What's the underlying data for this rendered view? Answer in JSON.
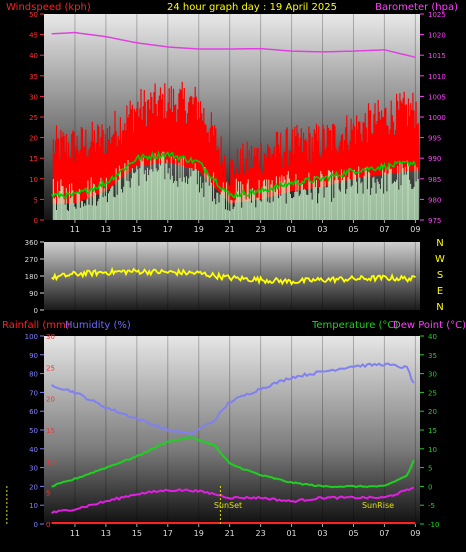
{
  "header": {
    "title": "24 hour graph day : 19 April 2025",
    "left_label": "Windspeed (kph)",
    "right_label": "Barometer (hpa)",
    "title_color": "#ffff00",
    "left_color": "#ff2020",
    "right_color": "#ff40ff"
  },
  "x_ticks": [
    "11",
    "13",
    "15",
    "17",
    "19",
    "21",
    "23",
    "01",
    "03",
    "05",
    "07",
    "09"
  ],
  "events": {
    "sunset": "SunSet",
    "sunrise": "SunRise",
    "sunset_hour": 20.4,
    "sunrise_hour": 6.6
  },
  "chart_data": [
    {
      "type": "line",
      "name": "wind-barometer",
      "ylim_left": [
        0,
        50
      ],
      "ylim_right": [
        975,
        1025
      ],
      "left_ticks": [
        0,
        5,
        10,
        15,
        20,
        25,
        30,
        35,
        40,
        45,
        50
      ],
      "right_ticks": [
        975,
        980,
        985,
        990,
        995,
        1000,
        1005,
        1010,
        1015,
        1020,
        1025
      ],
      "hours": [
        9.5,
        11,
        13,
        15,
        17,
        19,
        21,
        23,
        25,
        27,
        29,
        31,
        33
      ],
      "series": [
        {
          "role": "barometer",
          "color": "#e040e0",
          "values": [
            1020.2,
            1020.5,
            1019.5,
            1018,
            1017,
            1016.5,
            1016.5,
            1016.6,
            1016,
            1015.8,
            1016,
            1016.3,
            1014.5
          ]
        },
        {
          "role": "wind-gust",
          "color": "#ff0000",
          "values": [
            17,
            17,
            19,
            26,
            28,
            27,
            11,
            15,
            17,
            18,
            21,
            24,
            26
          ]
        },
        {
          "role": "wind-average",
          "color": "#00cc00",
          "values": [
            6,
            6,
            9,
            15,
            16,
            14,
            6,
            7,
            9,
            10,
            12,
            13,
            14
          ]
        },
        {
          "role": "wind-speed",
          "color": "#c8f0c8",
          "values": [
            2,
            2,
            4,
            8,
            9,
            6,
            2,
            3,
            4,
            4,
            5,
            6,
            7
          ]
        }
      ]
    },
    {
      "type": "line",
      "name": "wind-direction",
      "ylim": [
        0,
        360
      ],
      "left_ticks": [
        0,
        90,
        180,
        270,
        360
      ],
      "compass_labels": [
        "N",
        "W",
        "S",
        "E",
        "N"
      ],
      "hours": [
        9.5,
        11,
        13,
        15,
        17,
        19,
        21,
        23,
        25,
        27,
        29,
        31,
        33
      ],
      "series": [
        {
          "role": "direction",
          "color": "#ffff00",
          "values": [
            170,
            190,
            200,
            205,
            200,
            195,
            170,
            160,
            150,
            160,
            165,
            170,
            165
          ]
        }
      ]
    },
    {
      "type": "line",
      "name": "rain-humidity-temperature",
      "legend": {
        "rainfall": "Rainfall (mm)",
        "humidity": "Humidity (%)",
        "temperature": "Temperature (°C)",
        "dewpoint": "Dew Point (°C)"
      },
      "ylim_humidity": [
        0,
        100
      ],
      "ylim_rain": [
        0,
        30
      ],
      "ylim_temp": [
        -10,
        40
      ],
      "humidity_ticks": [
        0,
        10,
        20,
        30,
        40,
        50,
        60,
        70,
        80,
        90,
        100
      ],
      "rain_ticks": [
        0,
        5,
        10,
        15,
        20,
        25,
        30
      ],
      "temp_ticks": [
        -10,
        -5,
        0,
        5,
        10,
        15,
        20,
        25,
        30,
        35,
        40
      ],
      "hours": [
        9.5,
        11,
        13,
        15,
        17,
        18.5,
        20,
        21,
        23,
        25,
        27,
        29,
        31,
        32.5,
        33
      ],
      "series": [
        {
          "role": "humidity",
          "color": "#8080f0",
          "values": [
            74,
            70,
            62,
            56,
            50,
            48,
            55,
            65,
            72,
            78,
            81,
            84,
            85,
            83,
            72
          ]
        },
        {
          "role": "temperature",
          "color": "#20d020",
          "values": [
            0,
            2,
            5,
            8,
            12,
            13,
            11,
            6,
            3,
            1,
            0,
            0,
            0,
            3,
            8
          ]
        },
        {
          "role": "dewpoint",
          "color": "#e020e0",
          "values": [
            -7,
            -6,
            -4,
            -2,
            -1,
            -1,
            -2,
            -3,
            -3,
            -4,
            -3,
            -3,
            -3,
            -1,
            0
          ]
        },
        {
          "role": "rainfall",
          "color": "#ff2020",
          "values": [
            0,
            0,
            0,
            0,
            0,
            0,
            0,
            0,
            0,
            0,
            0,
            0,
            0,
            0,
            0
          ]
        }
      ]
    }
  ]
}
